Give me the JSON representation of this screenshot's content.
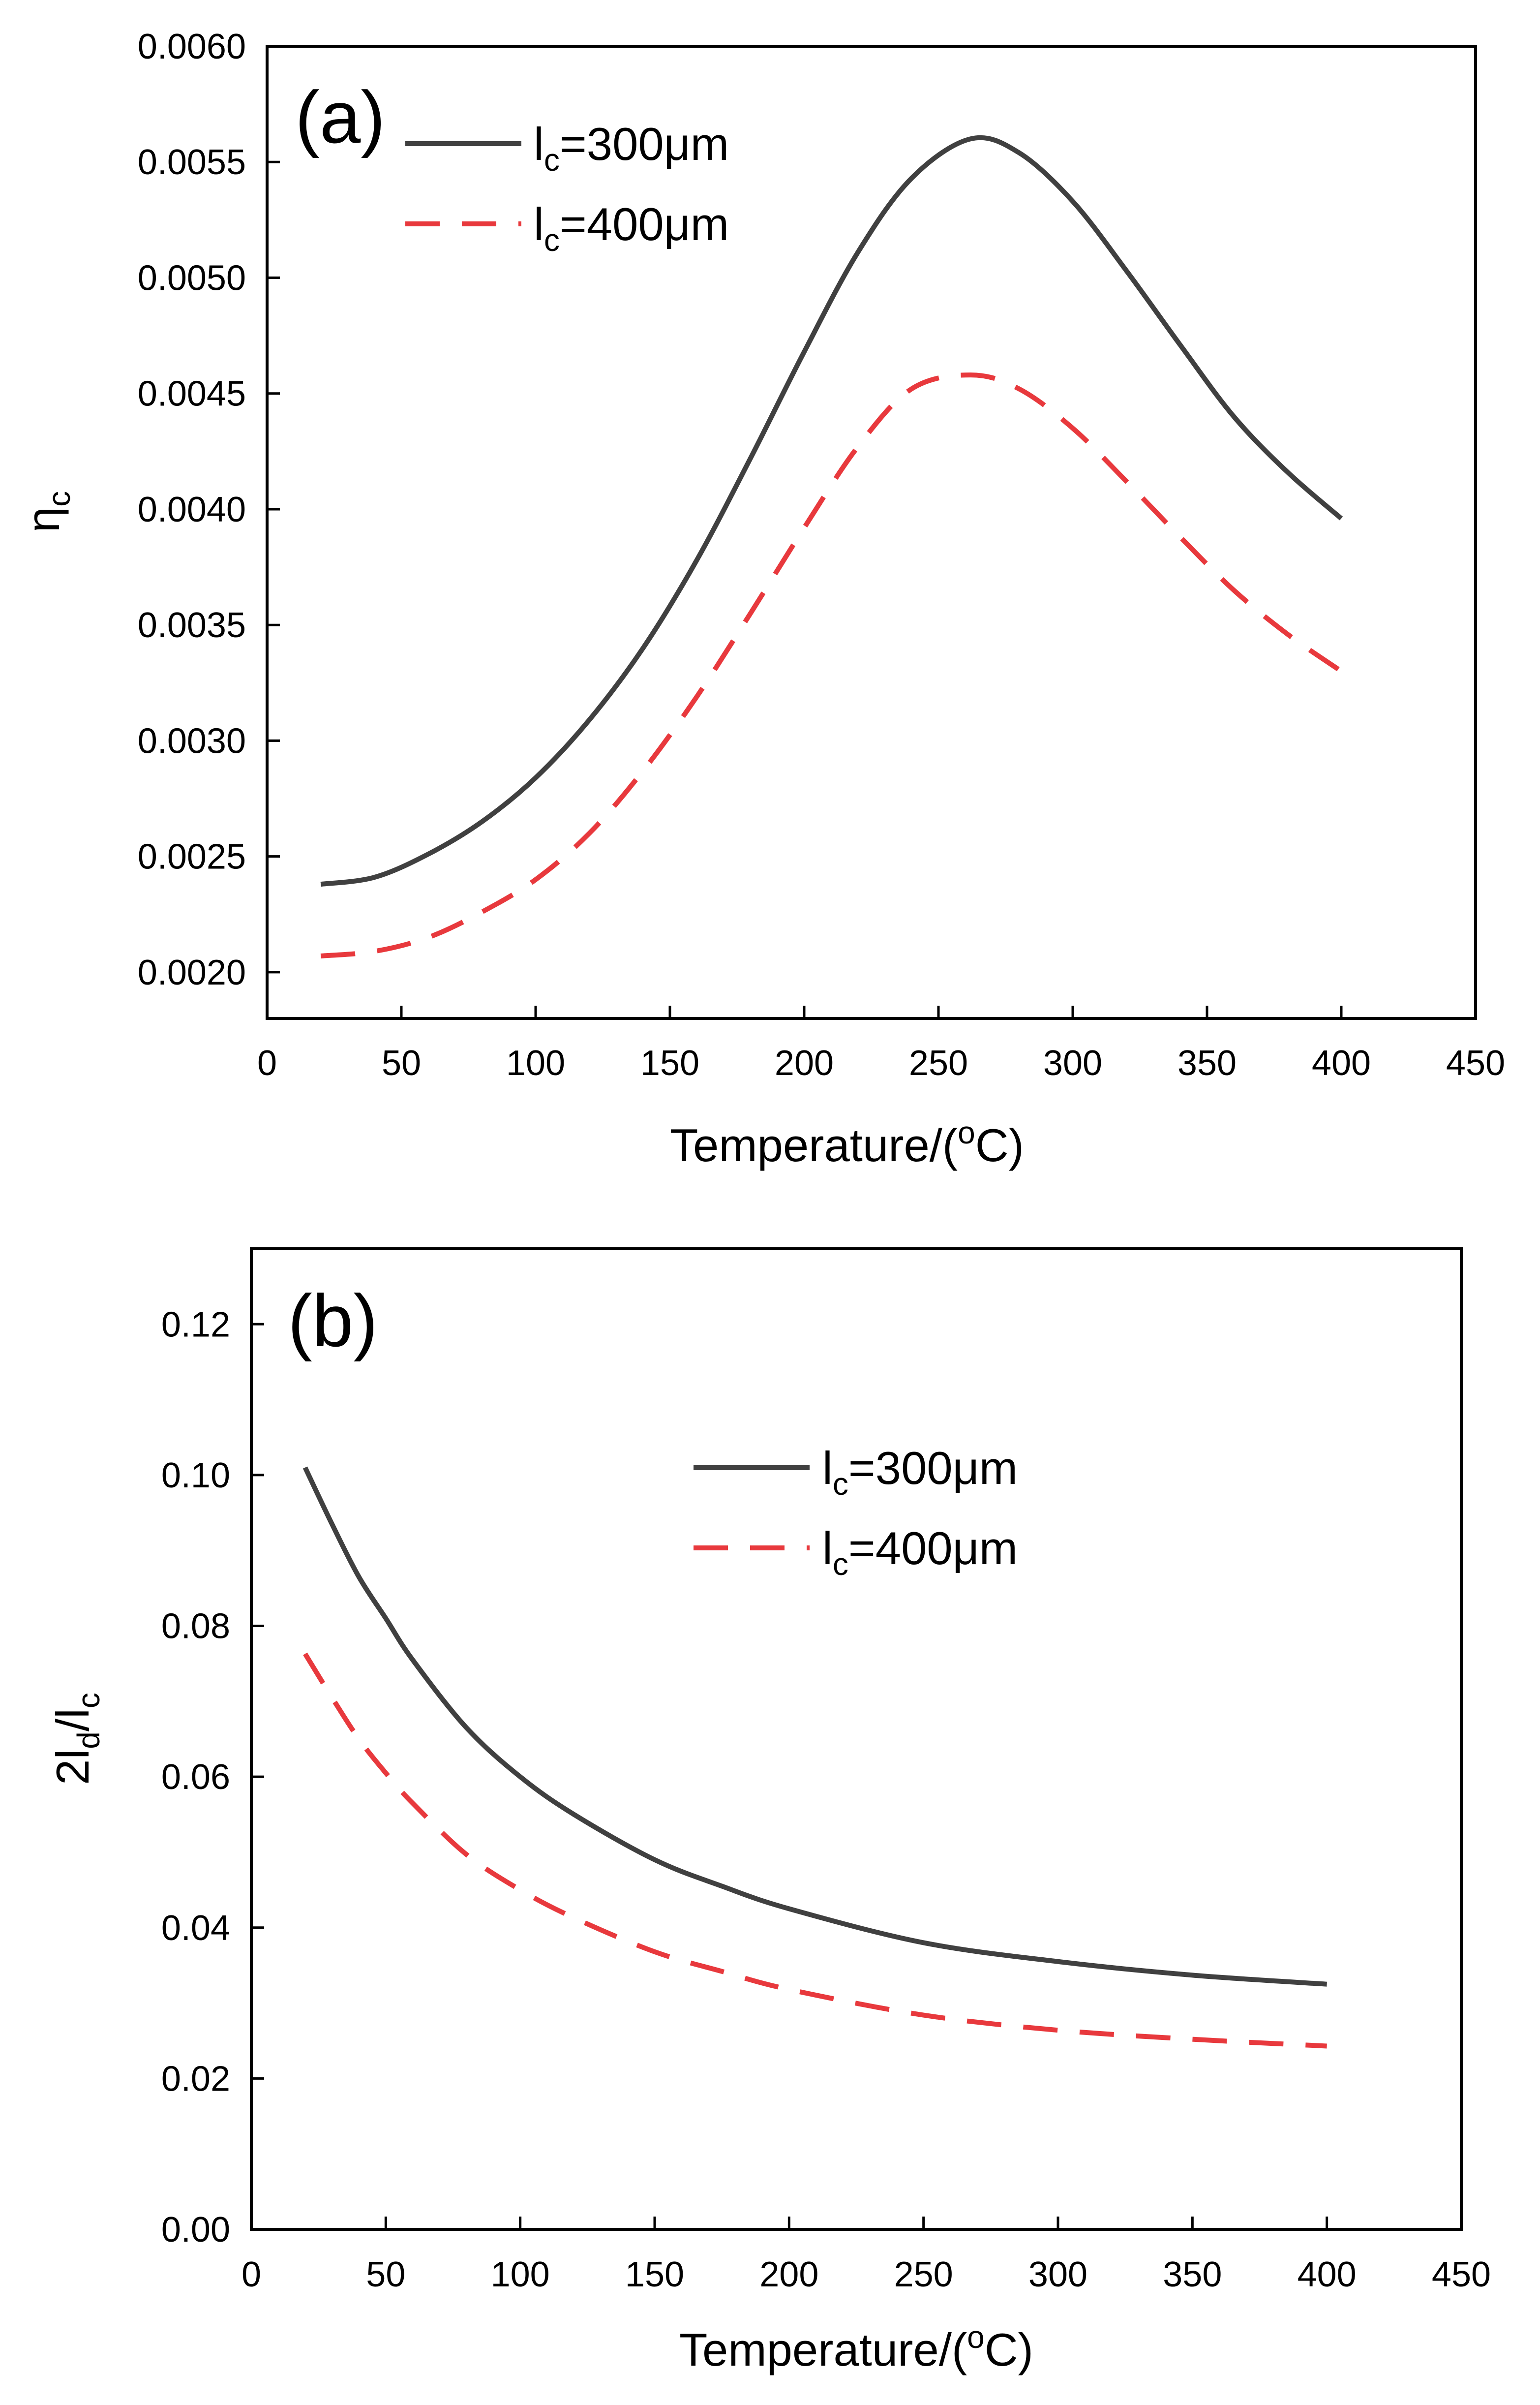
{
  "chart_data": [
    {
      "panel": "(a)",
      "type": "line",
      "xlabel": "Temperature/(oC)",
      "xlabel_parts": {
        "pre": "Temperature/(",
        "sup": "o",
        "post": "C)"
      },
      "ylabel": "ηc",
      "ylabel_parts": {
        "main": "η",
        "sub": "c"
      },
      "xlim": [
        0,
        450
      ],
      "ylim": [
        0.0018,
        0.006
      ],
      "x_ticks": [
        0,
        50,
        100,
        150,
        200,
        250,
        300,
        350,
        400,
        450
      ],
      "y_ticks": [
        0.002,
        0.0025,
        0.003,
        0.0035,
        0.004,
        0.0045,
        0.005,
        0.0055,
        0.006
      ],
      "x_tick_labels": [
        "0",
        "50",
        "100",
        "150",
        "200",
        "250",
        "300",
        "350",
        "400",
        "450"
      ],
      "y_tick_labels": [
        "0.0020",
        "0.0025",
        "0.0030",
        "0.0035",
        "0.0040",
        "0.0045",
        "0.0050",
        "0.0055",
        "0.0060"
      ],
      "grid": false,
      "legend_position": "top-left",
      "x": [
        20,
        40,
        60,
        80,
        100,
        120,
        140,
        160,
        180,
        200,
        220,
        240,
        262,
        280,
        300,
        320,
        340,
        360,
        380,
        400
      ],
      "series": [
        {
          "name": "lc=300μm",
          "name_parts": {
            "pre": "l",
            "sub": "c",
            "post": "=300μm"
          },
          "style": "solid",
          "color": "#404040",
          "values": [
            0.00238,
            0.00241,
            0.00251,
            0.00265,
            0.00284,
            0.00309,
            0.0034,
            0.00378,
            0.00422,
            0.00468,
            0.00511,
            0.00543,
            0.0056,
            0.00554,
            0.00533,
            0.00503,
            0.00471,
            0.0044,
            0.00416,
            0.00396
          ]
        },
        {
          "name": "lc=400μm",
          "name_parts": {
            "pre": "l",
            "sub": "c",
            "post": "=400μm"
          },
          "style": "dashed",
          "color": "#e8393d",
          "values": [
            0.00207,
            0.00209,
            0.00215,
            0.00226,
            0.0024,
            0.0026,
            0.00287,
            0.00319,
            0.00355,
            0.00392,
            0.00427,
            0.00452,
            0.00458,
            0.00452,
            0.00435,
            0.00412,
            0.00388,
            0.00365,
            0.00346,
            0.0033
          ]
        }
      ]
    },
    {
      "panel": "(b)",
      "type": "line",
      "xlabel": "Temperature/(oC)",
      "xlabel_parts": {
        "pre": "Temperature/(",
        "sup": "o",
        "post": "C)"
      },
      "ylabel": "2ld/lc",
      "ylabel_parts": {
        "a": "2l",
        "b": "d",
        "c": "/l",
        "d": "c"
      },
      "xlim": [
        0,
        450
      ],
      "ylim": [
        0,
        0.13
      ],
      "x_ticks": [
        0,
        50,
        100,
        150,
        200,
        250,
        300,
        350,
        400,
        450
      ],
      "y_ticks": [
        0,
        0.02,
        0.04,
        0.06,
        0.08,
        0.1,
        0.12
      ],
      "x_tick_labels": [
        "0",
        "50",
        "100",
        "150",
        "200",
        "250",
        "300",
        "350",
        "400",
        "450"
      ],
      "y_tick_labels": [
        "0.00",
        "0.02",
        "0.04",
        "0.06",
        "0.08",
        "0.10",
        "0.12"
      ],
      "grid": false,
      "legend_position": "upper-center",
      "x": [
        20,
        30,
        40,
        50,
        60,
        80,
        100,
        120,
        150,
        175,
        200,
        250,
        300,
        350,
        400
      ],
      "series": [
        {
          "name": "lc=300μm",
          "name_parts": {
            "pre": "l",
            "sub": "c",
            "post": "=300μm"
          },
          "style": "solid",
          "color": "#404040",
          "values": [
            0.101,
            0.0935,
            0.0865,
            0.081,
            0.0755,
            0.0665,
            0.06,
            0.055,
            0.049,
            0.0455,
            0.0425,
            0.038,
            0.0355,
            0.0337,
            0.0325
          ]
        },
        {
          "name": "lc=400μm",
          "name_parts": {
            "pre": "l",
            "sub": "c",
            "post": "=400μm"
          },
          "style": "dashed",
          "color": "#e8393d",
          "values": [
            0.0763,
            0.0705,
            0.065,
            0.0605,
            0.0565,
            0.0497,
            0.045,
            0.0413,
            0.0368,
            0.0342,
            0.0318,
            0.0284,
            0.0264,
            0.0252,
            0.0243
          ]
        }
      ]
    }
  ]
}
